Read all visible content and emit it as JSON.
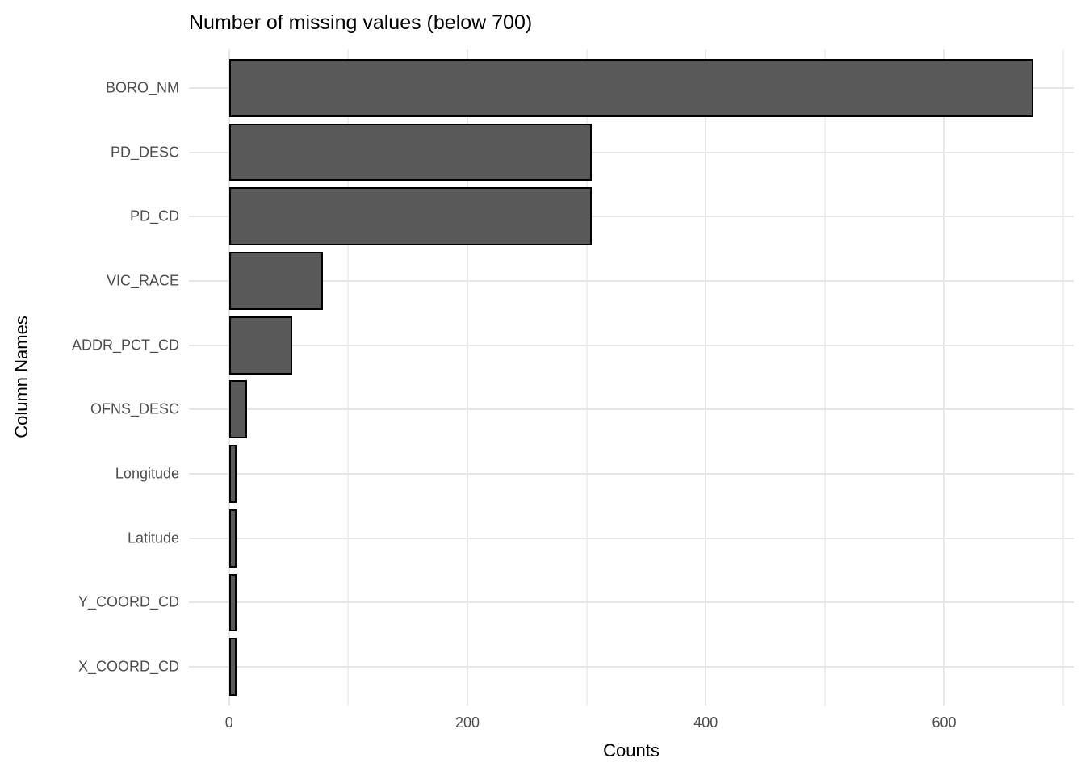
{
  "chart_data": {
    "type": "bar",
    "orientation": "horizontal",
    "title": "Number of missing values (below 700)",
    "xlabel": "Counts",
    "ylabel": "Column Names",
    "categories": [
      "BORO_NM",
      "PD_DESC",
      "PD_CD",
      "VIC_RACE",
      "ADDR_PCT_CD",
      "OFNS_DESC",
      "Longitude",
      "Latitude",
      "Y_COORD_CD",
      "X_COORD_CD"
    ],
    "values": [
      675,
      304,
      304,
      79,
      53,
      15,
      6,
      6,
      6,
      6
    ],
    "x_major_ticks": [
      0,
      200,
      400,
      600
    ],
    "x_minor_ticks": [
      100,
      300,
      500,
      700
    ],
    "xlim": [
      -33.75,
      708.75
    ],
    "grid": "vertical major+minor, horizontal major at category centers",
    "legend": "none",
    "colors": {
      "bar_fill": "#595959",
      "bar_stroke": "#000000",
      "grid_major": "#e7e7e7",
      "grid_minor": "#f0f0f0",
      "axis_text": "#4d4d4d",
      "title_text": "#000000",
      "background": "#ffffff"
    }
  }
}
